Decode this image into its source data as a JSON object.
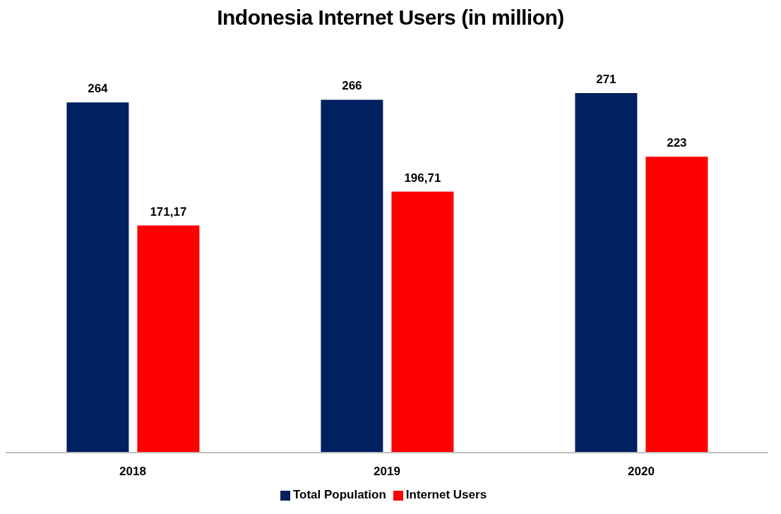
{
  "chart_data": {
    "type": "bar",
    "title": "Indonesia Internet Users (in million)",
    "categories": [
      "2018",
      "2019",
      "2020"
    ],
    "series": [
      {
        "name": "Total Population",
        "color": "#002060",
        "values": [
          264,
          266,
          271
        ],
        "value_labels": [
          "264",
          "266",
          "271"
        ]
      },
      {
        "name": "Internet Users",
        "color": "#ff0000",
        "values": [
          171.17,
          196.71,
          223
        ],
        "value_labels": [
          "171,17",
          "196,71",
          "223"
        ]
      }
    ],
    "tick_labels": "x",
    "legend": "bottom"
  }
}
